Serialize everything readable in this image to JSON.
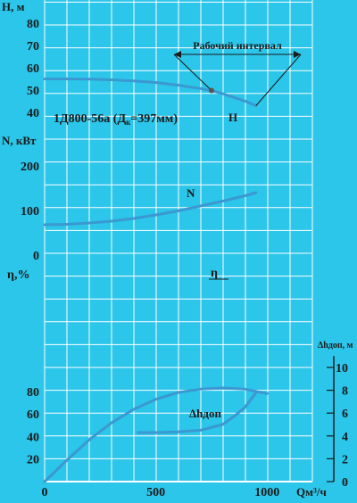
{
  "colors": {
    "background": "#2bc6ea",
    "grid": "#ffffff",
    "curve": "#3b98d0",
    "text": "#1a1a1a"
  },
  "pump_model": "1Д800-56а (Д",
  "pump_model_sub": "к",
  "pump_model_tail": "=397мм)",
  "chart_data": {
    "type": "line",
    "x": {
      "label": "Qм³/ч",
      "range": [
        0,
        1200
      ],
      "ticks": [
        {
          "v": 0,
          "t": "0"
        },
        {
          "v": 500,
          "t": "500"
        },
        {
          "v": 1000,
          "t": "1000"
        }
      ]
    },
    "panels": [
      {
        "id": "head",
        "ylabel": "H, м",
        "ylim": [
          40,
          90
        ],
        "ticks": [
          {
            "v": 40,
            "t": "40"
          },
          {
            "v": 50,
            "t": "50"
          },
          {
            "v": 60,
            "t": "60"
          },
          {
            "v": 70,
            "t": "70"
          },
          {
            "v": 80,
            "t": "80"
          }
        ],
        "series": [
          {
            "name": "H",
            "points": [
              [
                0,
                55
              ],
              [
                100,
                55
              ],
              [
                200,
                54.9
              ],
              [
                300,
                54.6
              ],
              [
                400,
                54.1
              ],
              [
                500,
                53.4
              ],
              [
                600,
                52.2
              ],
              [
                700,
                50.7
              ],
              [
                750,
                49.8
              ],
              [
                800,
                48.4
              ],
              [
                900,
                45.1
              ],
              [
                950,
                43
              ]
            ]
          }
        ],
        "working_interval": {
          "label": "Рабочий интервал",
          "from": 750,
          "to": 950,
          "marker_x": 750
        }
      },
      {
        "id": "power",
        "ylabel": "N, кВт",
        "ylim": [
          0,
          300
        ],
        "ticks": [
          {
            "v": 0,
            "t": "0"
          },
          {
            "v": 100,
            "t": "100"
          },
          {
            "v": 200,
            "t": "200"
          }
        ],
        "series": [
          {
            "name": "N",
            "points": [
              [
                0,
                68
              ],
              [
                100,
                69
              ],
              [
                200,
                72
              ],
              [
                300,
                76
              ],
              [
                400,
                82
              ],
              [
                500,
                90
              ],
              [
                600,
                99
              ],
              [
                700,
                110
              ],
              [
                800,
                121
              ],
              [
                900,
                133
              ],
              [
                950,
                140
              ]
            ]
          }
        ]
      },
      {
        "id": "efficiency",
        "ylabel": "η,%",
        "ylim": [
          0,
          100
        ],
        "ticks": [
          {
            "v": 20,
            "t": "20"
          },
          {
            "v": 40,
            "t": "40"
          },
          {
            "v": 60,
            "t": "60"
          },
          {
            "v": 80,
            "t": "80"
          }
        ],
        "series": [
          {
            "name": "η",
            "points": [
              [
                0,
                0
              ],
              [
                100,
                19
              ],
              [
                200,
                37
              ],
              [
                300,
                52
              ],
              [
                400,
                64
              ],
              [
                500,
                73
              ],
              [
                600,
                79
              ],
              [
                700,
                82
              ],
              [
                800,
                83
              ],
              [
                900,
                82
              ],
              [
                1000,
                78
              ]
            ]
          }
        ]
      },
      {
        "id": "npsh",
        "ylabel": "Δhдоп, м",
        "ylim": [
          0,
          11
        ],
        "ticks": [
          {
            "v": 0,
            "t": "0"
          },
          {
            "v": 2,
            "t": "2"
          },
          {
            "v": 4,
            "t": "4"
          },
          {
            "v": 6,
            "t": "6"
          },
          {
            "v": 8,
            "t": "8"
          },
          {
            "v": 10,
            "t": "10"
          }
        ],
        "series": [
          {
            "name": "Δhдоп",
            "points": [
              [
                420,
                4.3
              ],
              [
                500,
                4.3
              ],
              [
                600,
                4.35
              ],
              [
                700,
                4.5
              ],
              [
                800,
                5
              ],
              [
                850,
                5.7
              ],
              [
                900,
                6.5
              ],
              [
                950,
                7.8
              ]
            ]
          }
        ]
      }
    ]
  }
}
